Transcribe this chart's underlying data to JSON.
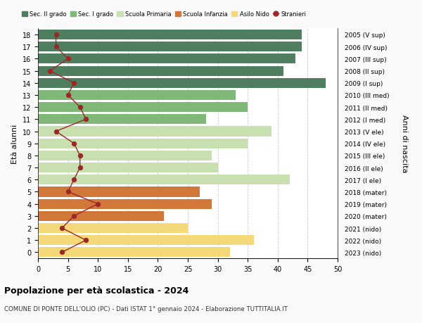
{
  "ages": [
    18,
    17,
    16,
    15,
    14,
    13,
    12,
    11,
    10,
    9,
    8,
    7,
    6,
    5,
    4,
    3,
    2,
    1,
    0
  ],
  "years": [
    "2005 (V sup)",
    "2006 (IV sup)",
    "2007 (III sup)",
    "2008 (II sup)",
    "2009 (I sup)",
    "2010 (III med)",
    "2011 (II med)",
    "2012 (I med)",
    "2013 (V ele)",
    "2014 (IV ele)",
    "2015 (III ele)",
    "2016 (II ele)",
    "2017 (I ele)",
    "2018 (mater)",
    "2019 (mater)",
    "2020 (mater)",
    "2021 (nido)",
    "2022 (nido)",
    "2023 (nido)"
  ],
  "values": [
    44,
    44,
    43,
    41,
    48,
    33,
    35,
    28,
    39,
    35,
    29,
    30,
    42,
    27,
    29,
    21,
    25,
    36,
    32
  ],
  "stranieri": [
    3,
    3,
    5,
    2,
    6,
    5,
    7,
    8,
    3,
    6,
    7,
    7,
    6,
    5,
    10,
    6,
    4,
    8,
    4
  ],
  "colors": {
    "sec2": "#4f7f5f",
    "sec1": "#80b87a",
    "primaria": "#c8dfb0",
    "infanzia": "#d2773a",
    "nido": "#f5d87a",
    "stranieri": "#9b2828"
  },
  "category_colors": [
    "#4f7f5f",
    "#4f7f5f",
    "#4f7f5f",
    "#4f7f5f",
    "#4f7f5f",
    "#80b87a",
    "#80b87a",
    "#80b87a",
    "#c8dfb0",
    "#c8dfb0",
    "#c8dfb0",
    "#c8dfb0",
    "#c8dfb0",
    "#d2773a",
    "#d2773a",
    "#d2773a",
    "#f5d87a",
    "#f5d87a",
    "#f5d87a"
  ],
  "title": "Popolazione per età scolastica - 2024",
  "subtitle": "COMUNE DI PONTE DELL'OLIO (PC) - Dati ISTAT 1° gennaio 2024 - Elaborazione TUTTITALIA.IT",
  "ylabel_left": "Età alunni",
  "ylabel_right": "Anni di nascita",
  "xlim": [
    0,
    50
  ],
  "background_color": "#f9f9f9",
  "bar_background": "#ffffff",
  "legend_labels": [
    "Sec. II grado",
    "Sec. I grado",
    "Scuola Primaria",
    "Scuola Infanzia",
    "Asilo Nido",
    "Stranieri"
  ]
}
